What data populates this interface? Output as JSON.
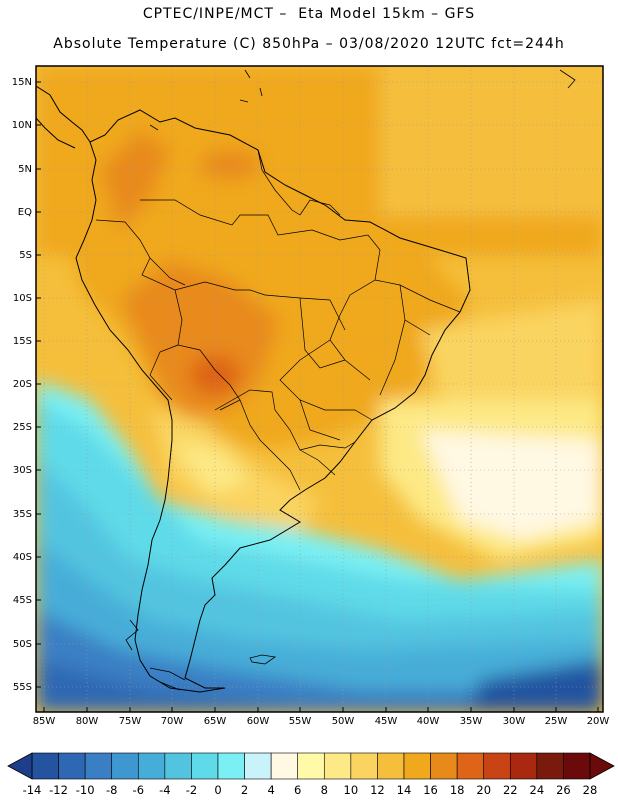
{
  "header": {
    "title_line1": "CPTEC/INPE/MCT –  Eta Model 15km – GFS",
    "title_line2": "Absolute Temperature (C) 850hPa – 03/08/2020 12UTC fct=244h"
  },
  "map": {
    "lat_labels": [
      "15N",
      "10N",
      "5N",
      "EQ",
      "5S",
      "10S",
      "15S",
      "20S",
      "25S",
      "30S",
      "35S",
      "40S",
      "45S",
      "50S",
      "55S"
    ],
    "lon_labels": [
      "85W",
      "80W",
      "75W",
      "70W",
      "65W",
      "60W",
      "55W",
      "50W",
      "45W",
      "40W",
      "35W",
      "30W",
      "25W",
      "20W"
    ]
  },
  "colorbar": {
    "tick_labels": [
      "-14",
      "-12",
      "-10",
      "-8",
      "-6",
      "-4",
      "-2",
      "0",
      "2",
      "4",
      "6",
      "8",
      "10",
      "12",
      "14",
      "16",
      "18",
      "20",
      "22",
      "24",
      "26",
      "28"
    ],
    "colors": [
      "#1d3f8a",
      "#2453a0",
      "#2e67b3",
      "#3a7fc4",
      "#3f97cf",
      "#46add8",
      "#52c4e0",
      "#5edae8",
      "#7af0f4",
      "#c8f3fb",
      "#fff8e3",
      "#fffaa8",
      "#fde985",
      "#fad460",
      "#f5bf3c",
      "#f0a81c",
      "#e88a1a",
      "#de6418",
      "#c94414",
      "#a82810",
      "#7a1a0c",
      "#6b0a0a"
    ],
    "min_value": -14,
    "max_value": 28
  }
}
